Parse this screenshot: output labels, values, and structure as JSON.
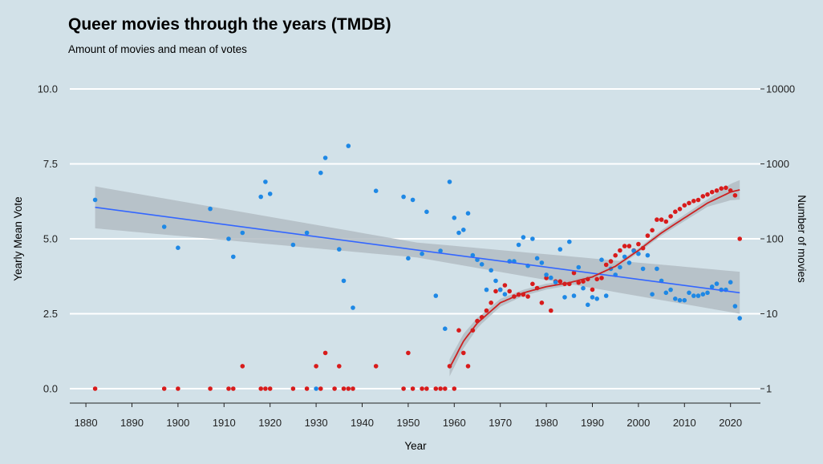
{
  "chart_data": {
    "type": "scatter",
    "title": "Queer movies through the years (TMDB)",
    "subtitle": "Amount of movies and mean of votes",
    "xlabel": "Year",
    "ylabel_left": "Yearly Mean Vote",
    "ylabel_right": "Number of movies",
    "x_ticks": [
      1880,
      1890,
      1900,
      1910,
      1920,
      1930,
      1940,
      1950,
      1960,
      1970,
      1980,
      1990,
      2000,
      2010,
      2020
    ],
    "xlim": [
      1876.5,
      2026.5
    ],
    "left_axis": {
      "ylim": [
        0,
        10
      ],
      "ticks": [
        0,
        2.5,
        5,
        7.5,
        10
      ],
      "tick_labels": [
        "0.0",
        "2.5",
        "5.0",
        "7.5",
        "10.0"
      ]
    },
    "right_axis": {
      "scale": "log10",
      "ticks": [
        1,
        10,
        100,
        1000,
        10000
      ],
      "tick_labels": [
        "1",
        "10",
        "100",
        "1000",
        "10000"
      ]
    },
    "grid": "horizontal",
    "colors": {
      "background": "#d2e1e8",
      "vote": "#1e88e5",
      "count": "#d81b1b",
      "vote_trend": "#3366ff",
      "count_trend": "#cc2222",
      "band": "#b3bcc3"
    },
    "series": [
      {
        "name": "",
        "axis": "left",
        "color": "#1e88e5",
        "points": [
          [
            1882,
            6.3
          ],
          [
            1897,
            5.4
          ],
          [
            1900,
            4.7
          ],
          [
            1907,
            6.0
          ],
          [
            1911,
            5.0
          ],
          [
            1912,
            4.4
          ],
          [
            1914,
            5.2
          ],
          [
            1918,
            6.4
          ],
          [
            1919,
            6.9
          ],
          [
            1920,
            6.5
          ],
          [
            1925,
            4.8
          ],
          [
            1928,
            5.2
          ],
          [
            1930,
            0.0
          ],
          [
            1931,
            7.2
          ],
          [
            1932,
            7.7
          ],
          [
            1935,
            4.65
          ],
          [
            1936,
            3.6
          ],
          [
            1937,
            8.1
          ],
          [
            1938,
            2.7
          ],
          [
            1943,
            6.6
          ],
          [
            1949,
            6.4
          ],
          [
            1950,
            4.35
          ],
          [
            1951,
            6.3
          ],
          [
            1953,
            4.5
          ],
          [
            1954,
            5.9
          ],
          [
            1956,
            3.1
          ],
          [
            1957,
            4.6
          ],
          [
            1958,
            2.0
          ],
          [
            1959,
            6.9
          ],
          [
            1960,
            5.7
          ],
          [
            1961,
            5.2
          ],
          [
            1962,
            5.3
          ],
          [
            1963,
            5.85
          ],
          [
            1964,
            4.45
          ],
          [
            1965,
            4.3
          ],
          [
            1966,
            4.15
          ],
          [
            1967,
            3.3
          ],
          [
            1968,
            3.95
          ],
          [
            1969,
            3.6
          ],
          [
            1970,
            3.3
          ],
          [
            1971,
            3.15
          ],
          [
            1972,
            4.25
          ],
          [
            1973,
            4.25
          ],
          [
            1974,
            4.8
          ],
          [
            1975,
            5.05
          ],
          [
            1976,
            4.1
          ],
          [
            1977,
            5.0
          ],
          [
            1978,
            4.35
          ],
          [
            1979,
            4.2
          ],
          [
            1980,
            3.8
          ],
          [
            1981,
            3.7
          ],
          [
            1982,
            3.55
          ],
          [
            1983,
            4.65
          ],
          [
            1984,
            3.05
          ],
          [
            1985,
            4.9
          ],
          [
            1986,
            3.1
          ],
          [
            1987,
            4.05
          ],
          [
            1988,
            3.35
          ],
          [
            1989,
            2.8
          ],
          [
            1990,
            3.05
          ],
          [
            1991,
            3.0
          ],
          [
            1992,
            4.3
          ],
          [
            1993,
            3.1
          ],
          [
            1994,
            4.0
          ],
          [
            1995,
            3.8
          ],
          [
            1996,
            4.05
          ],
          [
            1997,
            4.4
          ],
          [
            1998,
            4.2
          ],
          [
            1999,
            4.6
          ],
          [
            2000,
            4.5
          ],
          [
            2001,
            4.0
          ],
          [
            2002,
            4.45
          ],
          [
            2003,
            3.15
          ],
          [
            2004,
            4.0
          ],
          [
            2005,
            3.6
          ],
          [
            2006,
            3.2
          ],
          [
            2007,
            3.3
          ],
          [
            2008,
            3.0
          ],
          [
            2009,
            2.95
          ],
          [
            2010,
            2.95
          ],
          [
            2011,
            3.2
          ],
          [
            2012,
            3.1
          ],
          [
            2013,
            3.1
          ],
          [
            2014,
            3.15
          ],
          [
            2015,
            3.2
          ],
          [
            2016,
            3.4
          ],
          [
            2017,
            3.5
          ],
          [
            2018,
            3.3
          ],
          [
            2019,
            3.3
          ],
          [
            2020,
            3.55
          ],
          [
            2021,
            2.75
          ],
          [
            2022,
            2.35
          ]
        ]
      },
      {
        "name": "",
        "axis": "right",
        "color": "#d81b1b",
        "points": [
          [
            1882,
            1
          ],
          [
            1897,
            1
          ],
          [
            1900,
            1
          ],
          [
            1907,
            1
          ],
          [
            1911,
            1
          ],
          [
            1912,
            1
          ],
          [
            1914,
            2
          ],
          [
            1918,
            1
          ],
          [
            1919,
            1
          ],
          [
            1920,
            1
          ],
          [
            1925,
            1
          ],
          [
            1928,
            1
          ],
          [
            1930,
            2
          ],
          [
            1931,
            1
          ],
          [
            1932,
            3
          ],
          [
            1934,
            1
          ],
          [
            1935,
            2
          ],
          [
            1936,
            1
          ],
          [
            1937,
            1
          ],
          [
            1938,
            1
          ],
          [
            1943,
            2
          ],
          [
            1949,
            1
          ],
          [
            1950,
            3
          ],
          [
            1951,
            1
          ],
          [
            1953,
            1
          ],
          [
            1954,
            1
          ],
          [
            1956,
            1
          ],
          [
            1957,
            1
          ],
          [
            1958,
            1
          ],
          [
            1959,
            2
          ],
          [
            1960,
            1
          ],
          [
            1961,
            6
          ],
          [
            1962,
            3
          ],
          [
            1963,
            2
          ],
          [
            1964,
            6
          ],
          [
            1965,
            8
          ],
          [
            1966,
            9
          ],
          [
            1967,
            11
          ],
          [
            1968,
            14
          ],
          [
            1969,
            20
          ],
          [
            1970,
            21
          ],
          [
            1971,
            24
          ],
          [
            1972,
            20
          ],
          [
            1973,
            17
          ],
          [
            1974,
            18
          ],
          [
            1975,
            18
          ],
          [
            1976,
            17
          ],
          [
            1977,
            25
          ],
          [
            1978,
            22
          ],
          [
            1979,
            14
          ],
          [
            1980,
            30
          ],
          [
            1981,
            11
          ],
          [
            1982,
            27
          ],
          [
            1983,
            27
          ],
          [
            1984,
            25
          ],
          [
            1985,
            25
          ],
          [
            1986,
            35
          ],
          [
            1987,
            26
          ],
          [
            1988,
            27
          ],
          [
            1989,
            29
          ],
          [
            1990,
            21
          ],
          [
            1991,
            29
          ],
          [
            1992,
            30
          ],
          [
            1993,
            45
          ],
          [
            1994,
            50
          ],
          [
            1995,
            60
          ],
          [
            1996,
            70
          ],
          [
            1997,
            80
          ],
          [
            1998,
            80
          ],
          [
            1999,
            70
          ],
          [
            2000,
            85
          ],
          [
            2001,
            75
          ],
          [
            2002,
            110
          ],
          [
            2003,
            130
          ],
          [
            2004,
            180
          ],
          [
            2005,
            180
          ],
          [
            2006,
            170
          ],
          [
            2007,
            200
          ],
          [
            2008,
            230
          ],
          [
            2009,
            250
          ],
          [
            2010,
            280
          ],
          [
            2011,
            300
          ],
          [
            2012,
            320
          ],
          [
            2013,
            330
          ],
          [
            2014,
            370
          ],
          [
            2015,
            390
          ],
          [
            2016,
            420
          ],
          [
            2017,
            440
          ],
          [
            2018,
            470
          ],
          [
            2019,
            480
          ],
          [
            2020,
            440
          ],
          [
            2021,
            380
          ],
          [
            2022,
            100
          ]
        ]
      }
    ],
    "trend_lines": [
      {
        "axis": "left",
        "method": "linear",
        "color": "#3366ff",
        "x": [
          1882,
          2022
        ],
        "y": [
          6.05,
          3.2
        ],
        "band_halfwidth": [
          0.7,
          0.25
        ]
      },
      {
        "axis": "right",
        "method": "smooth",
        "color": "#cc2222",
        "points": [
          [
            1959,
            1.9
          ],
          [
            1962,
            4.3
          ],
          [
            1965,
            7.5
          ],
          [
            1970,
            14
          ],
          [
            1975,
            19
          ],
          [
            1980,
            23
          ],
          [
            1985,
            26
          ],
          [
            1990,
            31
          ],
          [
            1995,
            43
          ],
          [
            2000,
            70
          ],
          [
            2005,
            120
          ],
          [
            2010,
            190
          ],
          [
            2015,
            300
          ],
          [
            2020,
            420
          ],
          [
            2022,
            450
          ]
        ],
        "band_ratio": [
          [
            1959,
            1.3
          ],
          [
            1962,
            1.25
          ],
          [
            1966,
            1.15
          ],
          [
            1975,
            1.1
          ],
          [
            2000,
            1.07
          ],
          [
            2015,
            1.12
          ],
          [
            2022,
            1.35
          ]
        ]
      }
    ]
  }
}
